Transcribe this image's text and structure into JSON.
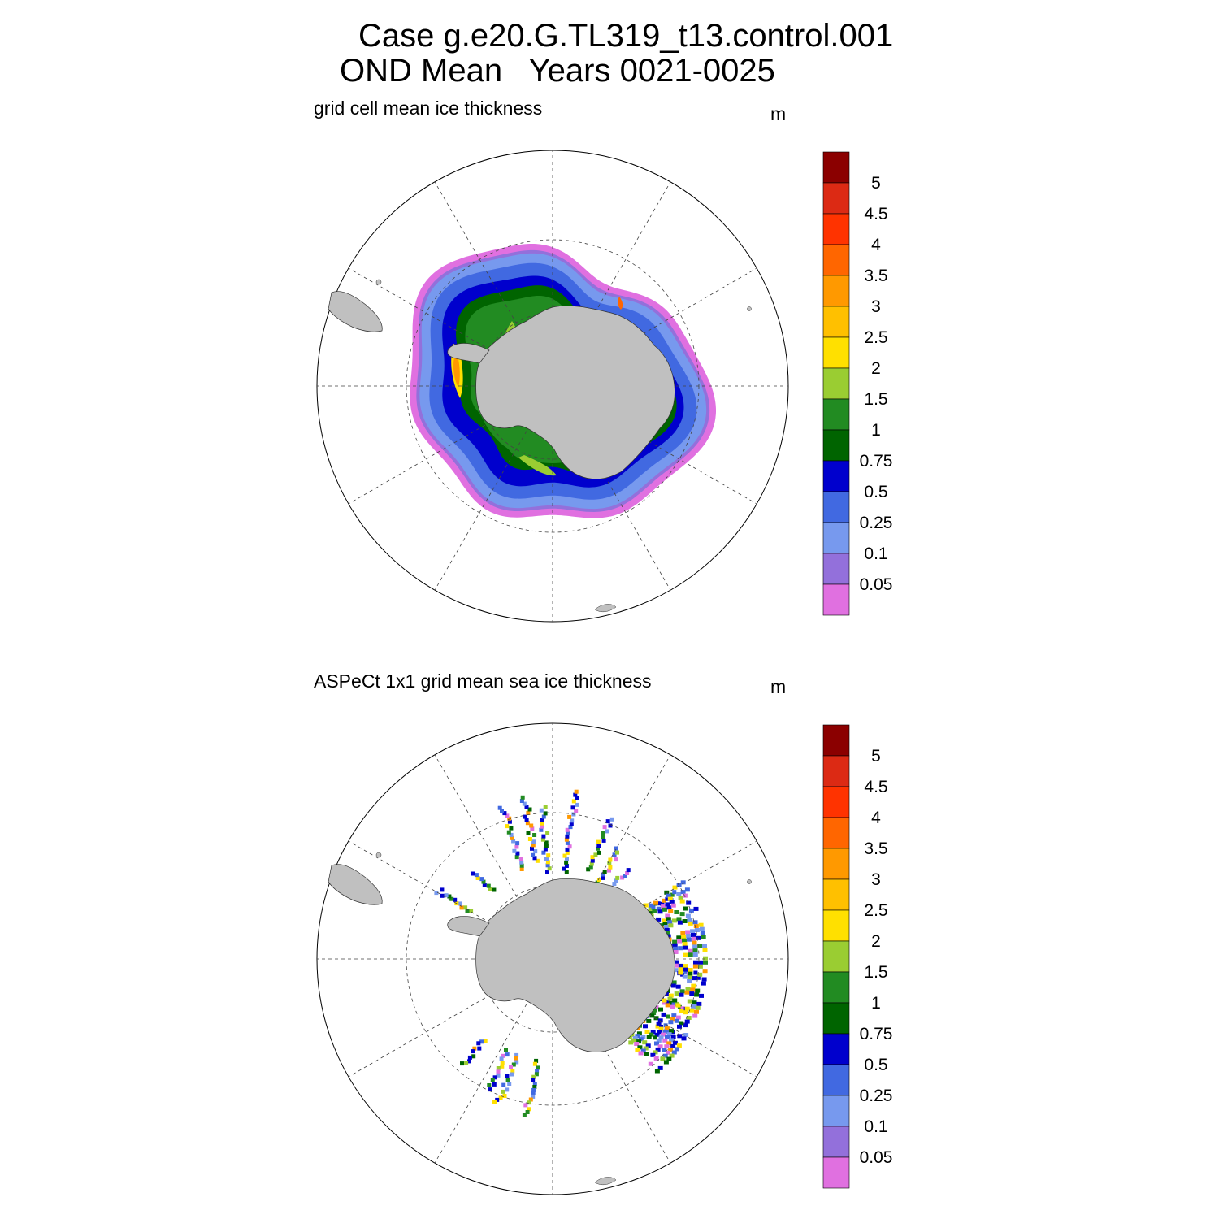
{
  "title": {
    "line1": "Case g.e20.G.TL319_t13.control.001",
    "line2": "OND Mean   Years 0021-0025"
  },
  "panels": [
    {
      "id": "model",
      "title": "grid cell mean ice thickness",
      "units": "m"
    },
    {
      "id": "obs",
      "title": "ASPeCt 1x1 grid mean sea ice thickness",
      "units": "m"
    }
  ],
  "colorbar": {
    "labels": [
      "5",
      "4.5",
      "4",
      "3.5",
      "3",
      "2.5",
      "2",
      "1.5",
      "1",
      "0.75",
      "0.5",
      "0.25",
      "0.1",
      "0.05"
    ],
    "colors": [
      "#8b0000",
      "#dc2a14",
      "#ff3300",
      "#ff6600",
      "#ff9900",
      "#ffc000",
      "#ffe000",
      "#9acd32",
      "#228b22",
      "#006400",
      "#0000cd",
      "#4169e1",
      "#7799ee",
      "#9370db",
      "#e070e0"
    ]
  },
  "colors": {
    "land": "#c0c0c0",
    "grid": "#444444"
  }
}
